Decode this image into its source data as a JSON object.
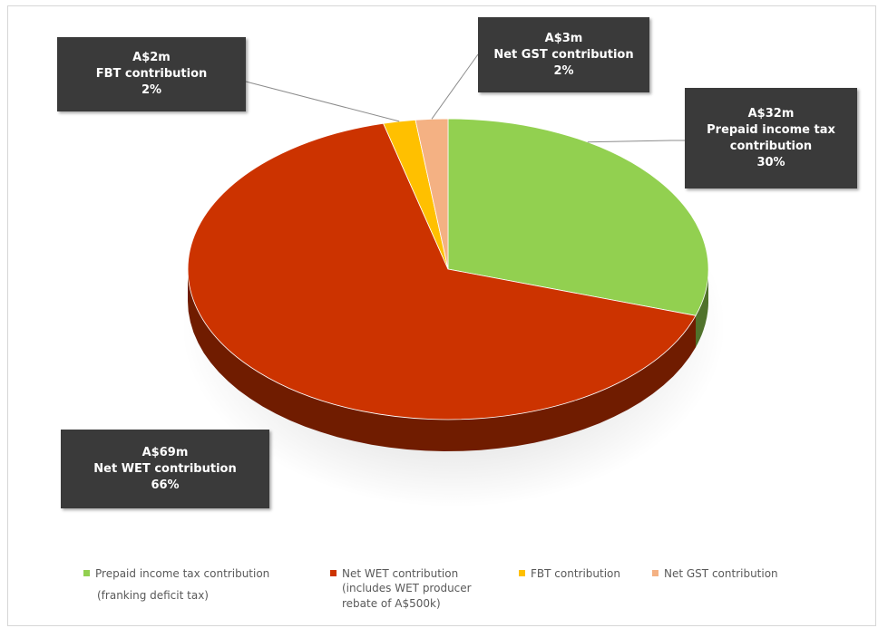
{
  "chart_data": {
    "type": "pie",
    "title": "",
    "slices": [
      {
        "label": "Prepaid income tax contribution",
        "value": 30,
        "amount": "A$32m",
        "color": "#92d050"
      },
      {
        "label": "Net WET contribution",
        "value": 66,
        "amount": "A$69m",
        "color": "#cc3300"
      },
      {
        "label": "FBT contribution",
        "value": 2,
        "amount": "A$2m",
        "color": "#ffc000"
      },
      {
        "label": "Net GST contribution",
        "value": 2,
        "amount": "A$3m",
        "color": "#f4b183"
      }
    ]
  },
  "callouts": {
    "prepaid": {
      "amount": "A$32m",
      "line1": "Prepaid income tax",
      "line2": "contribution",
      "pct": "30%"
    },
    "wet": {
      "amount": "A$69m",
      "line1": "Net WET contribution",
      "pct": "66%"
    },
    "fbt": {
      "amount": "A$2m",
      "line1": "FBT contribution",
      "pct": "2%"
    },
    "gst": {
      "amount": "A$3m",
      "line1": "Net GST contribution",
      "pct": "2%"
    }
  },
  "legend": {
    "items": [
      {
        "label": "Prepaid income tax contribution",
        "color": "#92d050",
        "note": "(franking deficit tax)"
      },
      {
        "label": "Net WET contribution",
        "color": "#cc3300",
        "note1": "(includes WET producer",
        "note2": "rebate of A$500k)"
      },
      {
        "label": "FBT contribution",
        "color": "#ffc000"
      },
      {
        "label": "Net GST contribution",
        "color": "#f4b183"
      }
    ]
  }
}
